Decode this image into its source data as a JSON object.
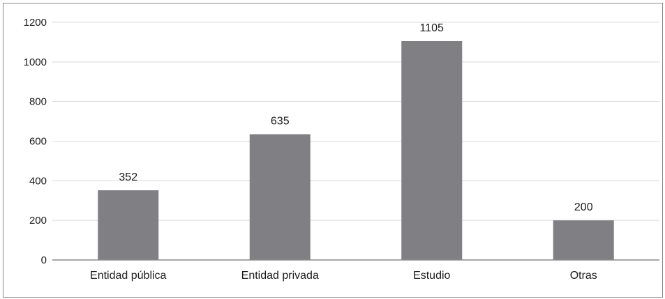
{
  "chart_data": {
    "type": "bar",
    "categories": [
      "Entidad pública",
      "Entidad privada",
      "Estudio",
      "Otras"
    ],
    "values": [
      352,
      635,
      1105,
      200
    ],
    "data_labels": [
      "352",
      "635",
      "1105",
      "200"
    ],
    "title": "",
    "xlabel": "",
    "ylabel": "",
    "ylim": [
      0,
      1200
    ],
    "yticks": [
      0,
      200,
      400,
      600,
      800,
      1000,
      1200
    ],
    "ytick_labels": [
      "0",
      "200",
      "400",
      "600",
      "800",
      "1000",
      "1200"
    ],
    "grid": true,
    "legend": "none",
    "colors": {
      "bar": "#808084",
      "grid": "#d9d9d9",
      "axis": "#8a8a8a"
    }
  }
}
